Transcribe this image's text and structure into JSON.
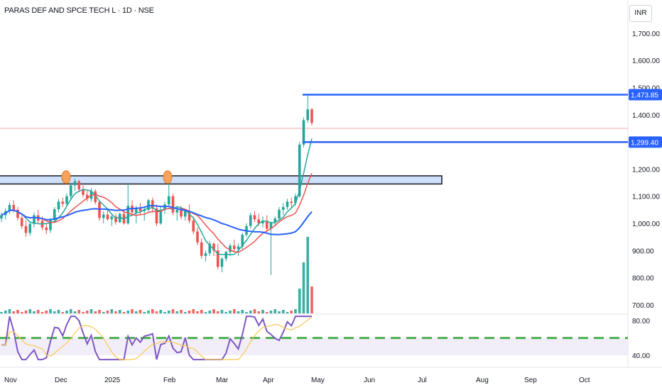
{
  "header": {
    "symbol_title": "PARAS DEF AND SPCE TECH L · 1D · NSE",
    "currency": "INR"
  },
  "chart_data": {
    "type": "candlestick",
    "title": "PARAS DEF AND SPCE TECH L · 1D · NSE",
    "y_axis": {
      "ticks": [
        700,
        800,
        900,
        1000,
        1100,
        1200,
        1300,
        1400,
        1500,
        1600,
        1700
      ],
      "ylim": [
        670,
        1810
      ]
    },
    "x_axis": {
      "labels": [
        "Nov",
        "Dec",
        "2025",
        "Feb",
        "Mar",
        "Apr",
        "May",
        "Jun",
        "Jul",
        "Aug",
        "Sep",
        "Oct"
      ]
    },
    "price_labels": [
      {
        "value": 1473.85,
        "label": "1,473.85",
        "color": "#2962ff"
      },
      {
        "value": 1299.4,
        "label": "1,299.40",
        "color": "#2962ff"
      }
    ],
    "horizontal_lines": [
      {
        "value": 1473.85,
        "color": "#2962ff",
        "start": "2025-04-25"
      },
      {
        "value": 1299.4,
        "color": "#2962ff",
        "start": "2025-04-25"
      },
      {
        "value": 1350,
        "color": "#f7a9a9",
        "style": "thin"
      }
    ],
    "zone": {
      "from": 1145,
      "to": 1175,
      "start": "2024-10-15",
      "end": "2025-06-19",
      "fill": "#cfe0fb"
    },
    "markers": [
      {
        "date": "2024-12-04",
        "value": 1165
      },
      {
        "date": "2025-01-30",
        "value": 1165
      }
    ],
    "series_legend": [
      {
        "color": "#26a69a",
        "role": "short moving average"
      },
      {
        "color": "#ef5350",
        "role": "medium moving average"
      },
      {
        "color": "#2962ff",
        "role": "long moving average"
      }
    ],
    "candles_estimated": [
      [
        1018,
        1040,
        1005,
        1030
      ],
      [
        1030,
        1055,
        1015,
        1045
      ],
      [
        1045,
        1078,
        1035,
        1068
      ],
      [
        1068,
        1085,
        1040,
        1050
      ],
      [
        1050,
        1060,
        1010,
        1020
      ],
      [
        1020,
        1030,
        980,
        990
      ],
      [
        990,
        1010,
        950,
        965
      ],
      [
        965,
        1005,
        955,
        998
      ],
      [
        998,
        1040,
        985,
        1030
      ],
      [
        1030,
        1050,
        1000,
        1010
      ],
      [
        1010,
        1025,
        975,
        985
      ],
      [
        985,
        1000,
        960,
        975
      ],
      [
        975,
        1020,
        965,
        1012
      ],
      [
        1012,
        1060,
        1005,
        1052
      ],
      [
        1052,
        1090,
        1040,
        1080
      ],
      [
        1080,
        1095,
        1060,
        1072
      ],
      [
        1072,
        1110,
        1065,
        1100
      ],
      [
        1100,
        1150,
        1090,
        1140
      ],
      [
        1140,
        1165,
        1120,
        1155
      ],
      [
        1155,
        1160,
        1115,
        1125
      ],
      [
        1125,
        1140,
        1095,
        1105
      ],
      [
        1105,
        1120,
        1080,
        1090
      ],
      [
        1090,
        1130,
        1080,
        1118
      ],
      [
        1118,
        1125,
        1070,
        1078
      ],
      [
        1078,
        1085,
        1010,
        1020
      ],
      [
        1020,
        1045,
        1000,
        1032
      ],
      [
        1032,
        1050,
        1010,
        1015
      ],
      [
        1015,
        1030,
        990,
        1025
      ],
      [
        1025,
        1035,
        995,
        1005
      ],
      [
        1005,
        1040,
        1000,
        1035
      ],
      [
        1035,
        1050,
        995,
        1000
      ],
      [
        1000,
        1150,
        995,
        1065
      ],
      [
        1065,
        1085,
        1030,
        1040
      ],
      [
        1040,
        1065,
        1000,
        1055
      ],
      [
        1055,
        1075,
        1030,
        1045
      ],
      [
        1045,
        1060,
        1010,
        1050
      ],
      [
        1050,
        1090,
        1040,
        1085
      ],
      [
        1085,
        1095,
        1040,
        1055
      ],
      [
        1055,
        1070,
        990,
        1000
      ],
      [
        1000,
        1060,
        995,
        1050
      ],
      [
        1050,
        1080,
        1035,
        1070
      ],
      [
        1070,
        1175,
        1060,
        1100
      ],
      [
        1100,
        1110,
        1030,
        1040
      ],
      [
        1040,
        1060,
        1010,
        1050
      ],
      [
        1050,
        1065,
        1015,
        1025
      ],
      [
        1025,
        1050,
        1010,
        1045
      ],
      [
        1045,
        1070,
        1000,
        1010
      ],
      [
        1010,
        1025,
        960,
        970
      ],
      [
        970,
        985,
        920,
        930
      ],
      [
        930,
        945,
        870,
        880
      ],
      [
        880,
        900,
        860,
        890
      ],
      [
        890,
        935,
        880,
        925
      ],
      [
        925,
        930,
        880,
        900
      ],
      [
        900,
        925,
        830,
        840
      ],
      [
        840,
        875,
        820,
        870
      ],
      [
        870,
        900,
        860,
        895
      ],
      [
        895,
        925,
        880,
        918
      ],
      [
        918,
        940,
        895,
        905
      ],
      [
        905,
        925,
        880,
        915
      ],
      [
        915,
        965,
        905,
        958
      ],
      [
        958,
        1000,
        950,
        990
      ],
      [
        990,
        1040,
        980,
        1030
      ],
      [
        1030,
        1045,
        1005,
        1015
      ],
      [
        1015,
        1035,
        990,
        1000
      ],
      [
        1000,
        1025,
        985,
        1010
      ],
      [
        1010,
        1030,
        970,
        980
      ],
      [
        980,
        990,
        810,
        1005
      ],
      [
        1005,
        1025,
        990,
        1018
      ],
      [
        1018,
        1060,
        1010,
        1050
      ],
      [
        1050,
        1075,
        1030,
        1060
      ],
      [
        1060,
        1090,
        1050,
        1080
      ],
      [
        1080,
        1095,
        1060,
        1075
      ],
      [
        1075,
        1110,
        1065,
        1100
      ],
      [
        1100,
        1300,
        1095,
        1290
      ],
      [
        1290,
        1390,
        1280,
        1380
      ],
      [
        1380,
        1474,
        1370,
        1420
      ],
      [
        1420,
        1425,
        1360,
        1370
      ]
    ],
    "rsi": {
      "ticks": [
        40,
        80
      ],
      "level": 60
    }
  }
}
